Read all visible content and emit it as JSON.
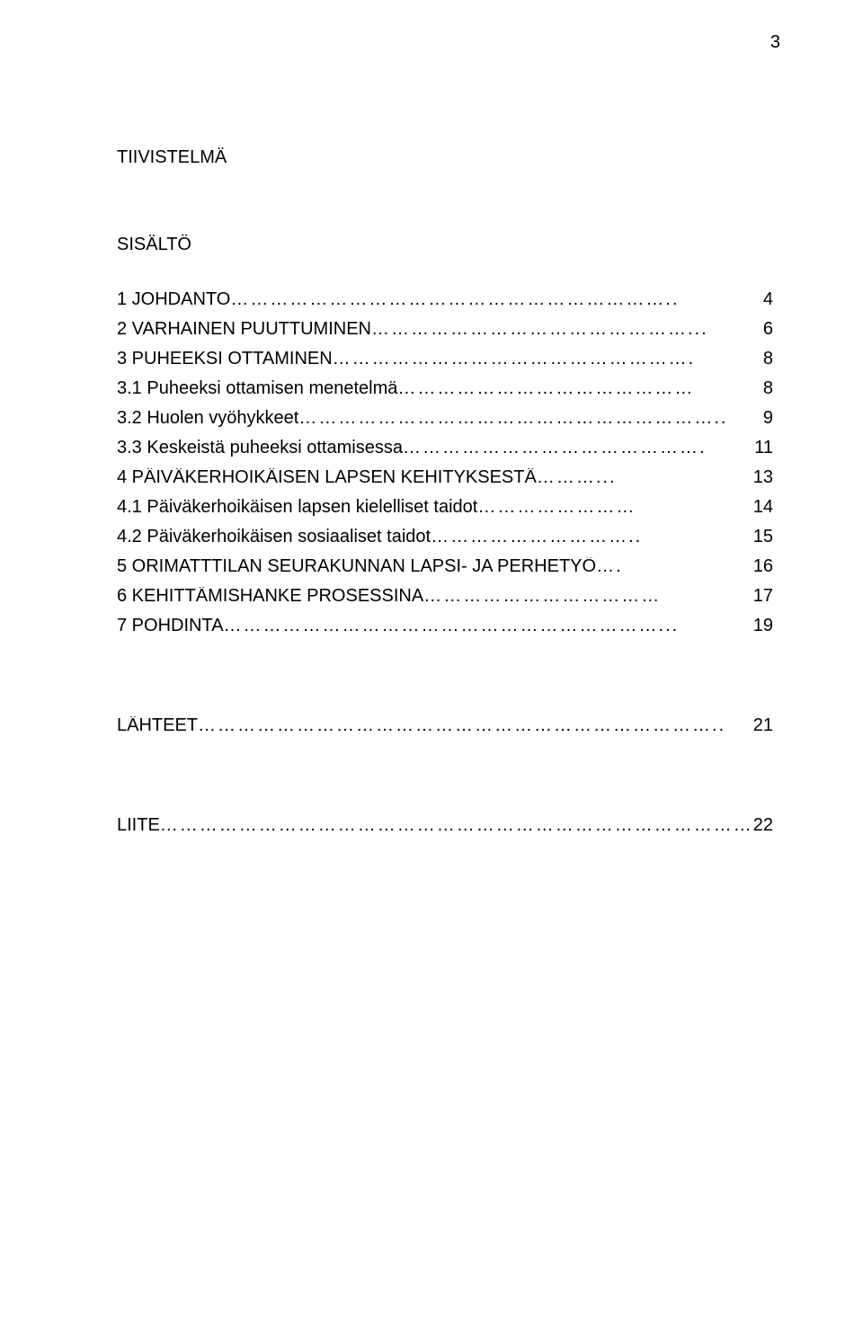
{
  "page_number": "3",
  "headings": {
    "tiivistelma": "TIIVISTELMÄ",
    "sisalto": "SISÄLTÖ"
  },
  "toc": [
    {
      "label": "1 JOHDANTO",
      "leader": "…………………………………………………………..",
      "page": "4"
    },
    {
      "label": "2 VARHAINEN PUUTTUMINEN",
      "leader": "…………………………………………...",
      "page": "6"
    },
    {
      "label": "3 PUHEEKSI OTTAMINEN",
      "leader": "……………………………………………….",
      "page": "8"
    },
    {
      "label": "3.1 Puheeksi ottamisen menetelmä",
      "leader": "………………………………………",
      "page": "8"
    },
    {
      "label": "3.2 Huolen vyöhykkeet",
      "leader": "………………………………………………………..",
      "page": "9"
    },
    {
      "label": "3.3 Keskeistä puheeksi ottamisessa",
      "leader": "……………………………………….",
      "page": "11"
    },
    {
      "label": "4 PÄIVÄKERHOIKÄISEN LAPSEN KEHITYKSESTÄ",
      "leader": "………...",
      "page": "13"
    },
    {
      "label": "4.1 Päiväkerhoikäisen lapsen kielelliset taidot",
      "leader": "……………………",
      "page": "14"
    },
    {
      "label": "4.2 Päiväkerhoikäisen sosiaaliset taidot",
      "leader": "…………………………..",
      "page": "15"
    },
    {
      "label": "5 ORIMATTTILAN SEURAKUNNAN LAPSI- JA PERHETYÖ",
      "leader": "….",
      "page": "16"
    },
    {
      "label": "6 KEHITTÄMISHANKE PROSESSINA",
      "leader": "………………………………",
      "page": "17"
    },
    {
      "label": "7 POHDINTA",
      "leader": "…………………………………………………………...",
      "page": "19"
    }
  ],
  "bottom": [
    {
      "label": "LÄHTEET",
      "leader": "……………………………………………………………………..",
      "page": "21"
    },
    {
      "label": "LIITE",
      "leader": "………………………………………………………………………………..",
      "page": "22"
    }
  ],
  "style": {
    "font_family": "Arial",
    "font_size_pt": 15,
    "text_color": "#000000",
    "background_color": "#ffffff"
  }
}
